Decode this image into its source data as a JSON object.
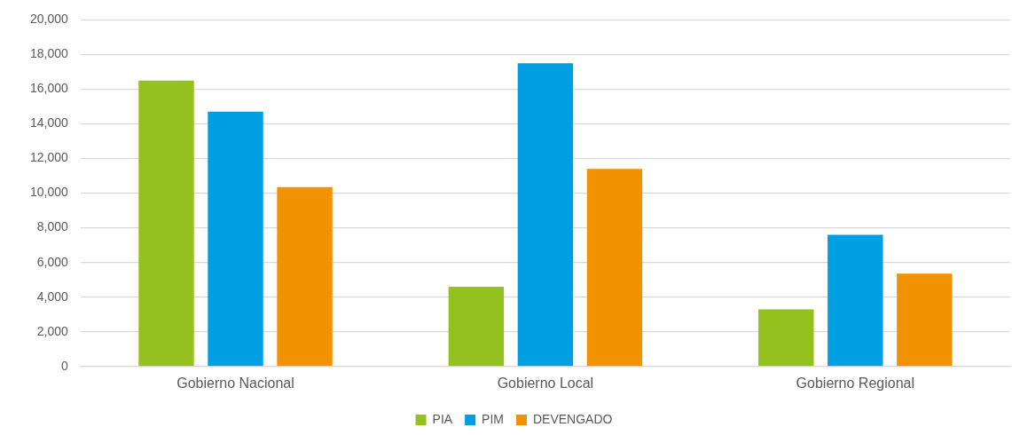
{
  "chart_data": {
    "type": "bar",
    "categories": [
      "Gobierno Nacional",
      "Gobierno Local",
      "Gobierno Regional"
    ],
    "series": [
      {
        "name": "PIA",
        "color": "#95c11f",
        "values": [
          16500,
          4600,
          3300
        ]
      },
      {
        "name": "PIM",
        "color": "#009fe3",
        "values": [
          14700,
          17500,
          7600
        ]
      },
      {
        "name": "DEVENGADO",
        "color": "#f39200",
        "values": [
          10350,
          11400,
          5350
        ]
      }
    ],
    "ylim": [
      0,
      20000
    ],
    "yticks": [
      {
        "value": 0,
        "label": "0"
      },
      {
        "value": 2000,
        "label": "2,000"
      },
      {
        "value": 4000,
        "label": "4,000"
      },
      {
        "value": 6000,
        "label": "6,000"
      },
      {
        "value": 8000,
        "label": "8,000"
      },
      {
        "value": 10000,
        "label": "10,000"
      },
      {
        "value": 12000,
        "label": "12,000"
      },
      {
        "value": 14000,
        "label": "14,000"
      },
      {
        "value": 16000,
        "label": "16,000"
      },
      {
        "value": 18000,
        "label": "18,000"
      },
      {
        "value": 20000,
        "label": "20,000"
      }
    ],
    "grid": "y",
    "legend": "bottom"
  }
}
